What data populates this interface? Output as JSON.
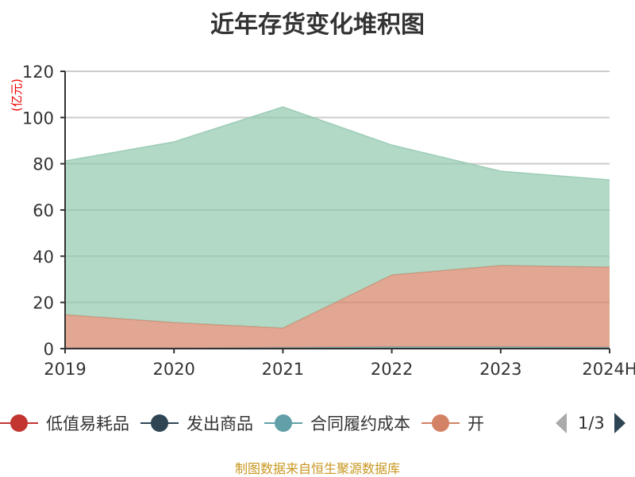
{
  "chart_data": {
    "type": "area",
    "stacked": true,
    "title": "近年存货变化堆积图",
    "ylabel": "(亿元)",
    "categories": [
      "2019",
      "2020",
      "2021",
      "2022",
      "2023",
      "2024H"
    ],
    "ylim": [
      0,
      120
    ],
    "yticks": [
      0,
      20,
      40,
      60,
      80,
      100,
      120
    ],
    "grid": true,
    "legend_position": "bottom",
    "series": [
      {
        "name": "低值易耗品",
        "color": "#c23531",
        "values": [
          0,
          0,
          0,
          0,
          0,
          0
        ]
      },
      {
        "name": "发出商品",
        "color": "#2f4554",
        "values": [
          0,
          0,
          0,
          0,
          0,
          0
        ]
      },
      {
        "name": "合同履约成本",
        "color": "#61a0a8",
        "values": [
          0.3,
          0.3,
          0.5,
          0.8,
          0.8,
          0.6
        ]
      },
      {
        "name": "开",
        "color": "#d48265",
        "values": [
          14.4,
          11.0,
          8.4,
          31.1,
          35.2,
          34.7
        ]
      },
      {
        "color": "#91c7ae",
        "values": [
          66.5,
          78.2,
          95.7,
          56.2,
          40.8,
          37.7
        ]
      }
    ]
  },
  "legend": {
    "page": "1/3"
  },
  "source": "制图数据来自恒生聚源数据库"
}
